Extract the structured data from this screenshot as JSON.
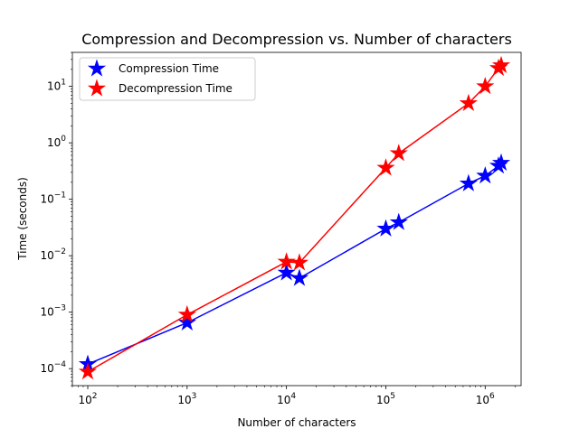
{
  "chart_data": {
    "type": "line",
    "title": "Compression and Decompression vs. Number of characters",
    "xlabel": "Number of characters",
    "ylabel": "Time (seconds)",
    "xscale": "log",
    "yscale": "log",
    "xlim": [
      70,
      2300000
    ],
    "ylim": [
      5e-05,
      40
    ],
    "xticks": [
      100,
      1000,
      10000,
      100000,
      1000000
    ],
    "xtick_labels": [
      {
        "base": "10",
        "exp": "2"
      },
      {
        "base": "10",
        "exp": "3"
      },
      {
        "base": "10",
        "exp": "4"
      },
      {
        "base": "10",
        "exp": "5"
      },
      {
        "base": "10",
        "exp": "6"
      }
    ],
    "yticks": [
      0.0001,
      0.001,
      0.01,
      0.1,
      1,
      10
    ],
    "ytick_labels": [
      {
        "base": "10",
        "exp": "−4"
      },
      {
        "base": "10",
        "exp": "−3"
      },
      {
        "base": "10",
        "exp": "−2"
      },
      {
        "base": "10",
        "exp": "−1"
      },
      {
        "base": "10",
        "exp": "0"
      },
      {
        "base": "10",
        "exp": "1"
      }
    ],
    "grid": false,
    "legend_position": "upper-left",
    "series": [
      {
        "name": "Compression Time",
        "color": "#0000ff",
        "marker": "star",
        "x": [
          100,
          1000,
          10000,
          13500,
          100000,
          135000,
          680000,
          1000000,
          1360000,
          1450000
        ],
        "y": [
          0.00012,
          0.00065,
          0.005,
          0.004,
          0.03,
          0.039,
          0.19,
          0.26,
          0.39,
          0.44
        ]
      },
      {
        "name": "Decompression Time",
        "color": "#ff0000",
        "marker": "star",
        "x": [
          100,
          1000,
          10000,
          13500,
          100000,
          135000,
          680000,
          1000000,
          1360000,
          1450000
        ],
        "y": [
          8.8e-05,
          0.0009,
          0.0078,
          0.0075,
          0.36,
          0.65,
          5.0,
          10.0,
          21.0,
          23.5
        ]
      }
    ]
  }
}
